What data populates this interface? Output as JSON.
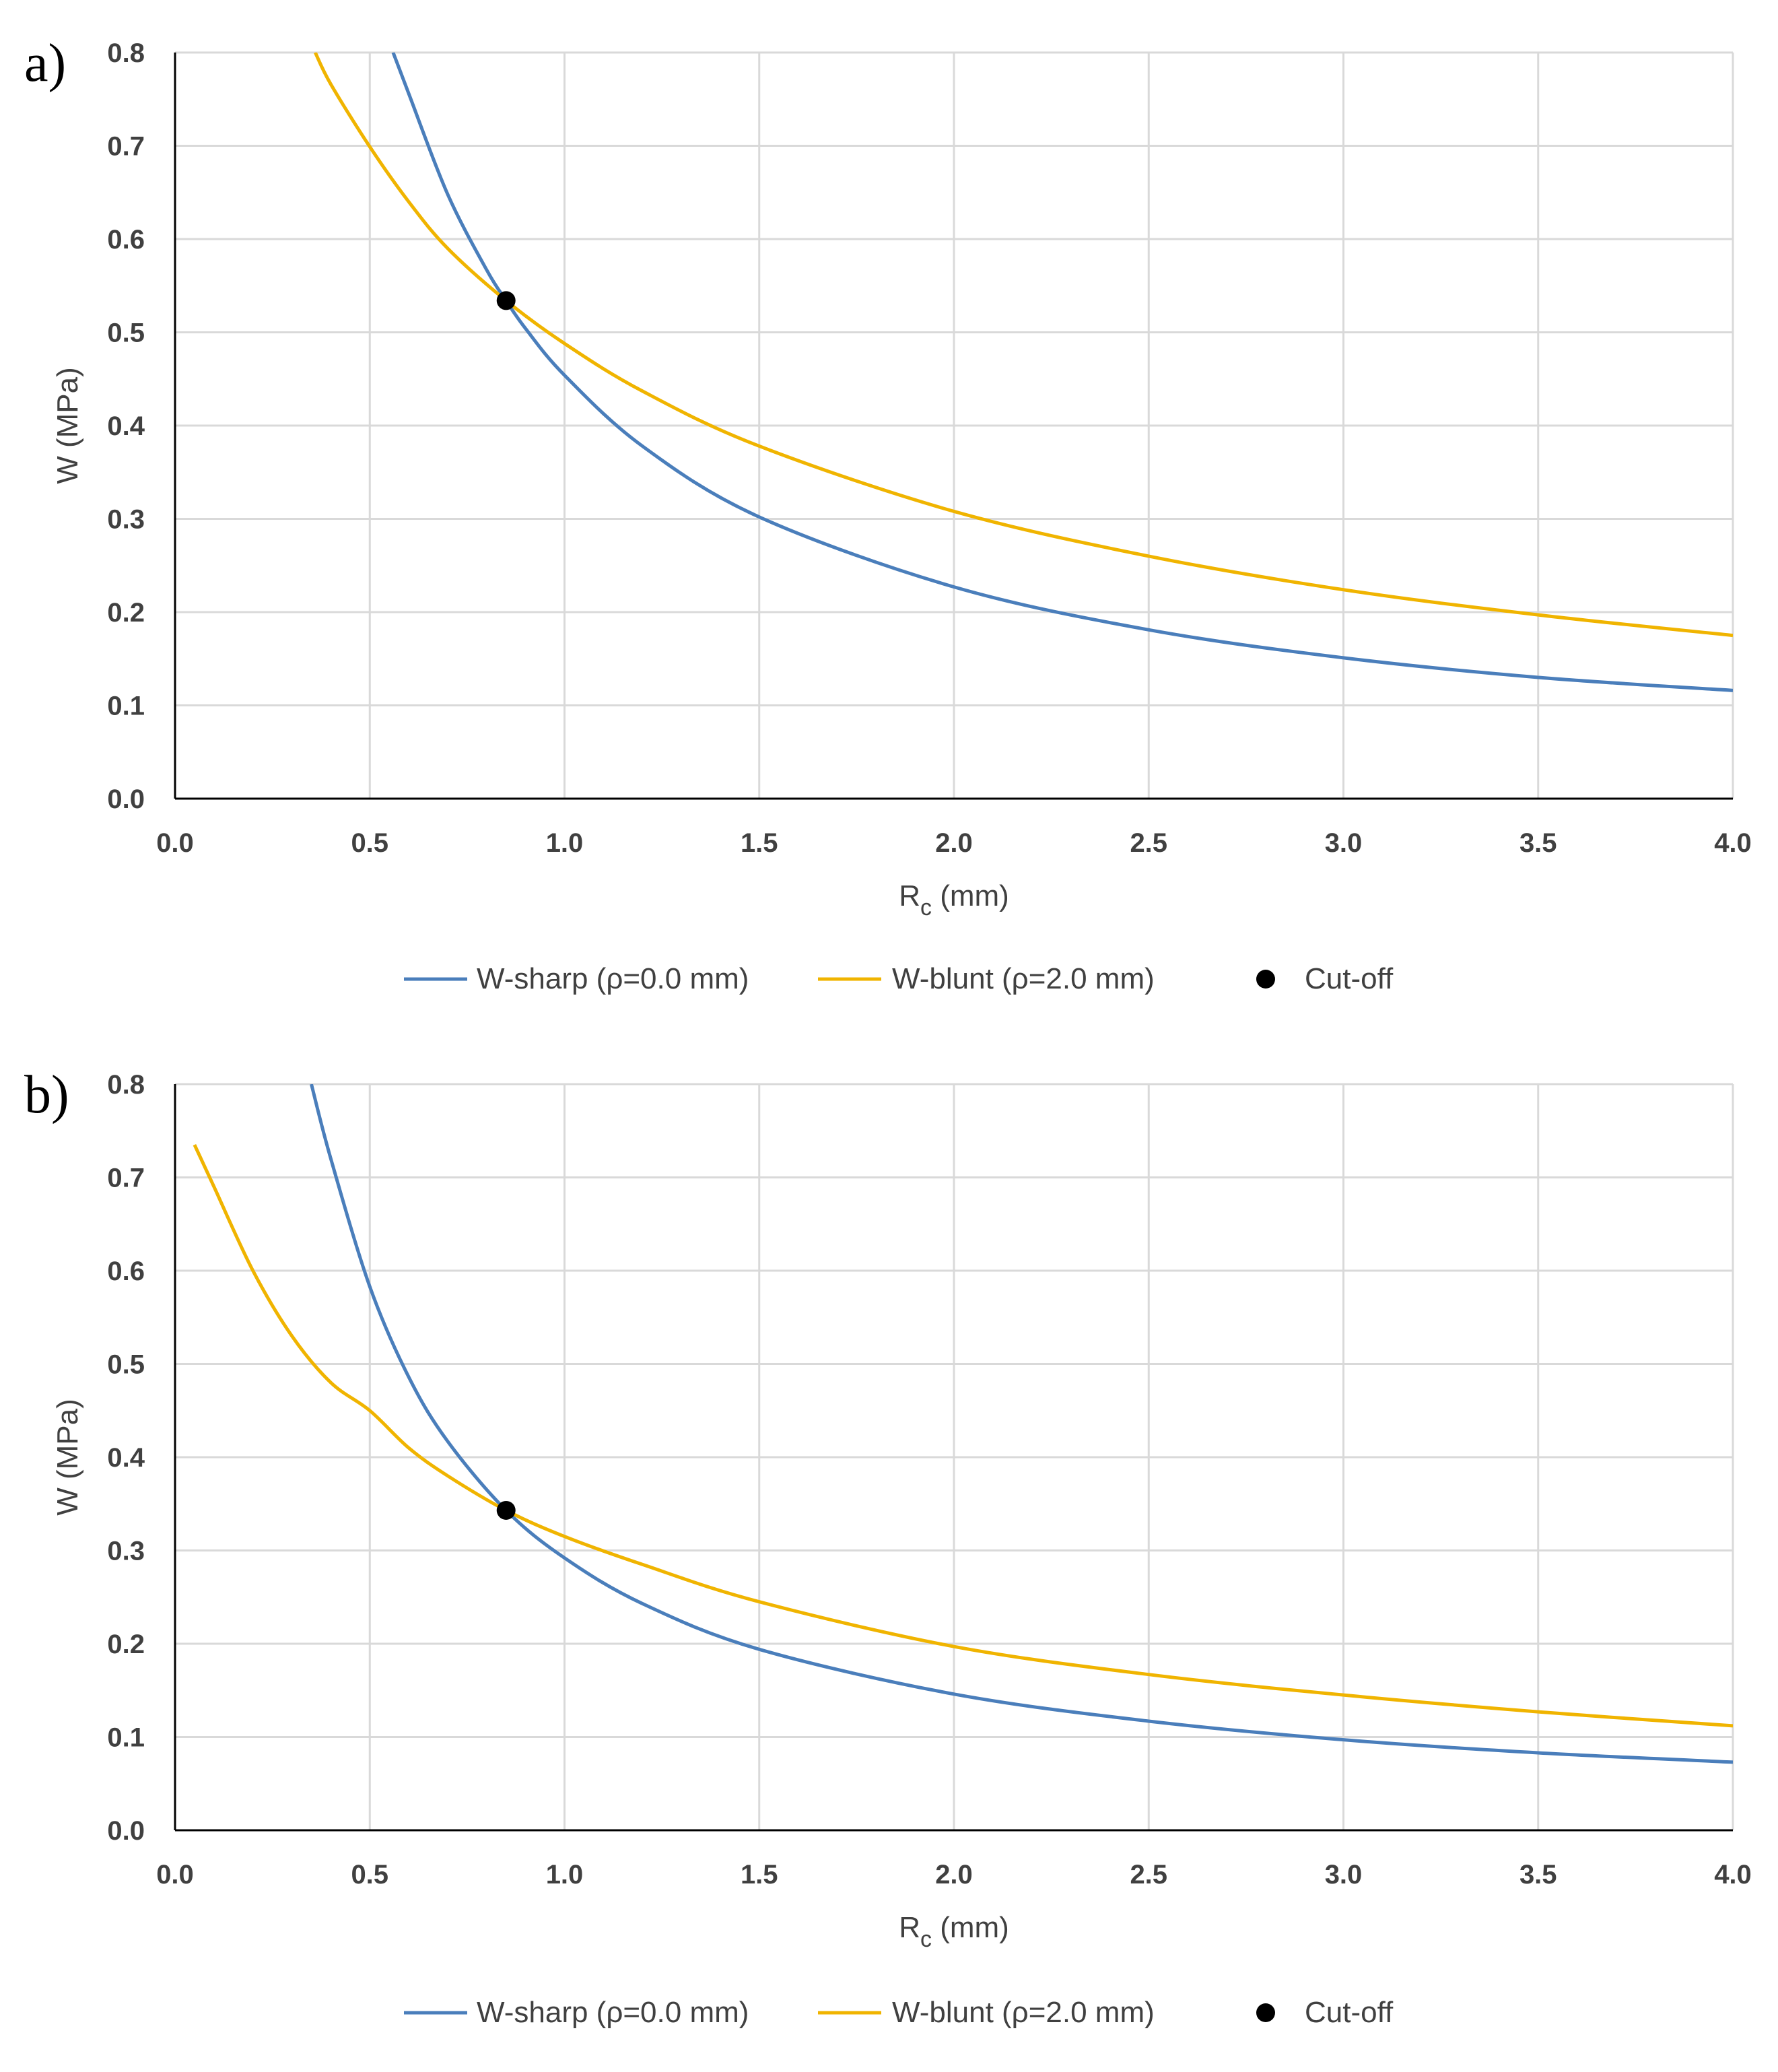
{
  "chart_data": [
    {
      "panel": "a)",
      "type": "line",
      "xlabel": {
        "main": "R",
        "sub": "c",
        "unit": "(mm)"
      },
      "ylabel": "W (MPa)",
      "xlim": [
        0,
        4
      ],
      "ylim": [
        0,
        0.8
      ],
      "xticks": [
        "0.0",
        "0.5",
        "1.0",
        "1.5",
        "2.0",
        "2.5",
        "3.0",
        "3.5",
        "4.0"
      ],
      "yticks": [
        "0.0",
        "0.1",
        "0.2",
        "0.3",
        "0.4",
        "0.5",
        "0.6",
        "0.7",
        "0.8"
      ],
      "grid": true,
      "legend_position": "bottom",
      "series": [
        {
          "name": "W-sharp (ρ=0.0 mm)",
          "color": "#4a7ebb",
          "x": [
            0.56,
            0.6,
            0.7,
            0.8,
            0.85,
            0.9,
            1.0,
            1.2,
            1.5,
            2.0,
            2.5,
            3.0,
            3.5,
            4.0
          ],
          "y": [
            0.8,
            0.756,
            0.648,
            0.567,
            0.534,
            0.504,
            0.454,
            0.378,
            0.302,
            0.227,
            0.181,
            0.151,
            0.13,
            0.116
          ]
        },
        {
          "name": "W-blunt (ρ=2.0 mm)",
          "color": "#f0b400",
          "x": [
            0.36,
            0.4,
            0.5,
            0.6,
            0.7,
            0.85,
            1.0,
            1.2,
            1.5,
            2.0,
            2.5,
            3.0,
            3.5,
            4.0
          ],
          "y": [
            0.8,
            0.766,
            0.699,
            0.64,
            0.59,
            0.534,
            0.488,
            0.437,
            0.378,
            0.308,
            0.26,
            0.224,
            0.197,
            0.175
          ]
        }
      ],
      "points": [
        {
          "name": "Cut-off",
          "color": "#000000",
          "x": 0.85,
          "y": 0.534
        }
      ]
    },
    {
      "panel": "b)",
      "type": "line",
      "xlabel": {
        "main": "R",
        "sub": "c",
        "unit": "(mm)"
      },
      "ylabel": "W (MPa)",
      "xlim": [
        0,
        4
      ],
      "ylim": [
        0,
        0.8
      ],
      "xticks": [
        "0.0",
        "0.5",
        "1.0",
        "1.5",
        "2.0",
        "2.5",
        "3.0",
        "3.5",
        "4.0"
      ],
      "yticks": [
        "0.0",
        "0.1",
        "0.2",
        "0.3",
        "0.4",
        "0.5",
        "0.6",
        "0.7",
        "0.8"
      ],
      "grid": true,
      "legend_position": "bottom",
      "series": [
        {
          "name": "W-sharp (ρ=0.0 mm)",
          "color": "#4a7ebb",
          "x": [
            0.35,
            0.4,
            0.5,
            0.6,
            0.7,
            0.85,
            1.0,
            1.2,
            1.5,
            2.0,
            2.5,
            3.0,
            3.5,
            4.0
          ],
          "y": [
            0.8,
            0.72,
            0.583,
            0.486,
            0.417,
            0.343,
            0.292,
            0.243,
            0.194,
            0.146,
            0.117,
            0.097,
            0.083,
            0.073
          ]
        },
        {
          "name": "W-blunt (ρ=2.0 mm)",
          "color": "#f0b400",
          "x": [
            0.05,
            0.1,
            0.2,
            0.3,
            0.4,
            0.5,
            0.6,
            0.7,
            0.85,
            1.0,
            1.2,
            1.5,
            2.0,
            2.5,
            3.0,
            3.5,
            4.0
          ],
          "y": [
            0.735,
            0.69,
            0.6,
            0.53,
            0.48,
            0.45,
            0.41,
            0.38,
            0.343,
            0.315,
            0.285,
            0.245,
            0.197,
            0.167,
            0.145,
            0.127,
            0.112
          ]
        }
      ],
      "points": [
        {
          "name": "Cut-off",
          "color": "#000000",
          "x": 0.85,
          "y": 0.343
        }
      ]
    }
  ]
}
